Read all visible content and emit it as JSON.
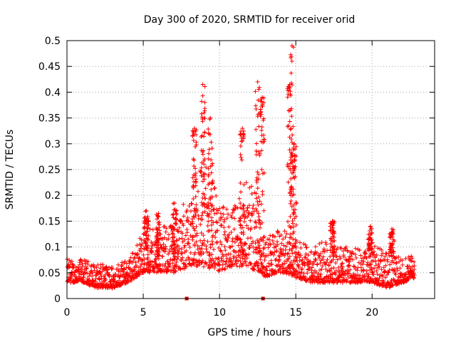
{
  "chart_data": {
    "type": "scatter",
    "title": "Day 300 of 2020, SRMTID for receiver orid",
    "xlabel": "GPS time / hours",
    "ylabel": "SRMTID / TECUs",
    "xlim": [
      0,
      24.1
    ],
    "ylim": [
      0,
      0.5
    ],
    "x_ticks": [
      0,
      5,
      10,
      15,
      20
    ],
    "x_tick_labels": [
      "0",
      "5",
      "10",
      "15",
      "20"
    ],
    "y_ticks": [
      0,
      0.05,
      0.1,
      0.15,
      0.2,
      0.25,
      0.3,
      0.35,
      0.4,
      0.45,
      0.5
    ],
    "y_tick_labels": [
      "0",
      "0.05",
      "0.1",
      "0.15",
      "0.2",
      "0.25",
      "0.3",
      "0.35",
      "0.4",
      "0.45",
      "0.5"
    ],
    "grid": true,
    "marker": "plus",
    "color": "#ff0000",
    "gap_markers_x": [
      7.85,
      12.85
    ],
    "envelope": {
      "description": "dense point cloud; per hour: [hour, typical_low, typical_high]",
      "profile": [
        [
          0.0,
          0.03,
          0.08
        ],
        [
          1.0,
          0.03,
          0.08
        ],
        [
          2.0,
          0.02,
          0.07
        ],
        [
          3.0,
          0.02,
          0.07
        ],
        [
          4.0,
          0.03,
          0.08
        ],
        [
          5.0,
          0.05,
          0.14
        ],
        [
          6.0,
          0.05,
          0.14
        ],
        [
          7.0,
          0.05,
          0.16
        ],
        [
          8.0,
          0.06,
          0.22
        ],
        [
          9.0,
          0.06,
          0.3
        ],
        [
          10.0,
          0.05,
          0.2
        ],
        [
          11.0,
          0.06,
          0.19
        ],
        [
          12.0,
          0.06,
          0.26
        ],
        [
          13.0,
          0.04,
          0.13
        ],
        [
          14.0,
          0.05,
          0.14
        ],
        [
          15.0,
          0.04,
          0.13
        ],
        [
          16.0,
          0.03,
          0.1
        ],
        [
          17.0,
          0.03,
          0.12
        ],
        [
          18.0,
          0.03,
          0.11
        ],
        [
          19.0,
          0.03,
          0.1
        ],
        [
          20.0,
          0.03,
          0.11
        ],
        [
          21.0,
          0.02,
          0.1
        ],
        [
          22.0,
          0.03,
          0.08
        ],
        [
          22.8,
          0.04,
          0.09
        ]
      ]
    },
    "peaks": [
      {
        "x": 8.35,
        "y": 0.33
      },
      {
        "x": 8.9,
        "y": 0.415
      },
      {
        "x": 9.4,
        "y": 0.35
      },
      {
        "x": 11.5,
        "y": 0.33
      },
      {
        "x": 12.5,
        "y": 0.42
      },
      {
        "x": 12.8,
        "y": 0.39
      },
      {
        "x": 14.6,
        "y": 0.415
      },
      {
        "x": 14.75,
        "y": 0.49
      },
      {
        "x": 14.9,
        "y": 0.3
      },
      {
        "x": 5.2,
        "y": 0.17
      },
      {
        "x": 6.0,
        "y": 0.165
      },
      {
        "x": 7.05,
        "y": 0.185
      },
      {
        "x": 17.4,
        "y": 0.15
      },
      {
        "x": 19.9,
        "y": 0.14
      },
      {
        "x": 21.3,
        "y": 0.135
      }
    ]
  }
}
